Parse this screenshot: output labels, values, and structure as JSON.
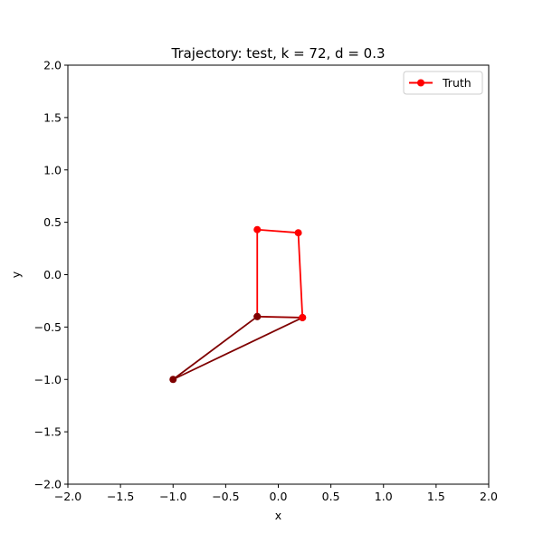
{
  "chart_data": {
    "type": "line",
    "title": "Trajectory: test, k = 72, d = 0.3",
    "xlabel": "x",
    "ylabel": "y",
    "xlim": [
      -2.0,
      2.0
    ],
    "ylim": [
      -2.0,
      2.0
    ],
    "xticks": [
      "−2.0",
      "−1.5",
      "−1.0",
      "−0.5",
      "0.0",
      "0.5",
      "1.0",
      "1.5",
      "2.0"
    ],
    "yticks": [
      "−2.0",
      "−1.5",
      "−1.0",
      "−0.5",
      "0.0",
      "0.5",
      "1.0",
      "1.5",
      "2.0"
    ],
    "xtick_values": [
      -2.0,
      -1.5,
      -1.0,
      -0.5,
      0.0,
      0.5,
      1.0,
      1.5,
      2.0
    ],
    "ytick_values": [
      -2.0,
      -1.5,
      -1.0,
      -0.5,
      0.0,
      0.5,
      1.0,
      1.5,
      2.0
    ],
    "grid": false,
    "legend": {
      "placement": "top-right",
      "entries": [
        "Truth"
      ]
    },
    "series": [
      {
        "name": "Truth",
        "color": "#ff0000",
        "segment_colors": [
          "#7f0000",
          "#7f0000",
          "#9a0000",
          "#ff0000",
          "#ff0000",
          "#ff0000"
        ],
        "point_colors": [
          "#7f0000",
          "#7f0000",
          "#7f0000",
          "#7f0000",
          "#ff0000",
          "#ff0000",
          "#ff0000"
        ],
        "points": [
          {
            "x": -0.2,
            "y": -0.4
          },
          {
            "x": -1.0,
            "y": -1.0
          },
          {
            "x": 0.23,
            "y": -0.41
          },
          {
            "x": -0.2,
            "y": -0.4
          },
          {
            "x": -0.2,
            "y": 0.43
          },
          {
            "x": 0.19,
            "y": 0.4
          },
          {
            "x": 0.23,
            "y": -0.41
          }
        ]
      }
    ]
  }
}
